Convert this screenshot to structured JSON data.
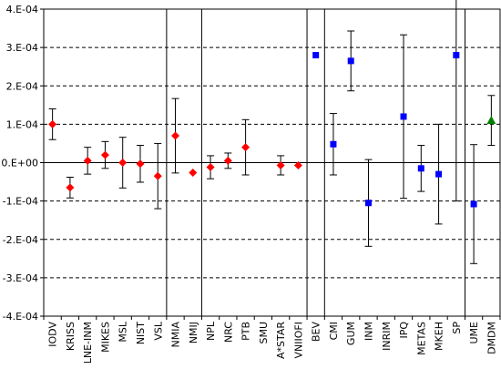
{
  "chart_data": {
    "type": "scatter",
    "title": "",
    "xlabel": "",
    "ylabel": "",
    "ylim": [
      -0.0004,
      0.0004
    ],
    "yticks": [
      0.0004,
      0.0003,
      0.0002,
      0.0001,
      0.0,
      -0.0001,
      -0.0002,
      -0.0003,
      -0.0004
    ],
    "ytick_labels": [
      "4.E-04",
      "3.E-04",
      "2.E-04",
      "1.E-04",
      "0.E+00",
      "-1.E-04",
      "-2.E-04",
      "-3.E-04",
      "-4.E-04"
    ],
    "grid": "horizontal dashed",
    "legend": "none",
    "categories": [
      "IODV",
      "KRISS",
      "LNE-INM",
      "MIKES",
      "MSL",
      "NIST",
      "VSL",
      "NMIA",
      "NMIJ",
      "NPL",
      "NRC",
      "PTB",
      "SMU",
      "A*STAR",
      "VNIIOFI",
      "BEV",
      "CMI",
      "GUM",
      "INM",
      "INRIM",
      "IPQ",
      "METAS",
      "MKEH",
      "SP",
      "UME",
      "DMDM"
    ],
    "group_separators_after": [
      "VSL",
      "NMIJ",
      "VNIIOFI",
      "BEV",
      "SP"
    ],
    "series": [
      {
        "marker": "diamond",
        "color": "#ff0000",
        "points": [
          {
            "x": "IODV",
            "y": 0.0001,
            "err": 4e-05
          },
          {
            "x": "KRISS",
            "y": -6.5e-05,
            "err": 2.7e-05
          },
          {
            "x": "LNE-INM",
            "y": 5e-06,
            "err": 3.5e-05
          },
          {
            "x": "MIKES",
            "y": 2e-05,
            "err": 3.5e-05
          },
          {
            "x": "MSL",
            "y": 0.0,
            "err": 6.6e-05
          },
          {
            "x": "NIST",
            "y": -3e-06,
            "err": 4.8e-05
          },
          {
            "x": "VSL",
            "y": -3.5e-05,
            "err": 8.5e-05
          },
          {
            "x": "NMIA",
            "y": 7e-05,
            "err": 9.7e-05
          },
          {
            "x": "NMIJ",
            "y": -2.6e-05,
            "err": null
          },
          {
            "x": "NPL",
            "y": -1.2e-05,
            "err": 3e-05
          },
          {
            "x": "NRC",
            "y": 5e-06,
            "err": 2e-05
          },
          {
            "x": "PTB",
            "y": 4e-05,
            "err": 7.2e-05
          },
          {
            "x": "A*STAR",
            "y": -7e-06,
            "err": 2.5e-05
          },
          {
            "x": "VNIIOFI",
            "y": -7e-06,
            "err": null
          }
        ]
      },
      {
        "marker": "square",
        "color": "#0000ff",
        "points": [
          {
            "x": "BEV",
            "y": 0.00028,
            "err": null
          },
          {
            "x": "CMI",
            "y": 4.8e-05,
            "err": 8e-05
          },
          {
            "x": "GUM",
            "y": 0.000265,
            "err": 7.8e-05
          },
          {
            "x": "INM",
            "y": -0.000105,
            "err": 0.000113
          },
          {
            "x": "IPQ",
            "y": 0.00012,
            "err": 0.000213
          },
          {
            "x": "METAS",
            "y": -1.5e-05,
            "err": 6e-05
          },
          {
            "x": "MKEH",
            "y": -3e-05,
            "err": 0.00013
          },
          {
            "x": "SP",
            "y": 0.00028,
            "err": 0.00038
          },
          {
            "x": "UME",
            "y": -0.000108,
            "err": 0.000155
          }
        ]
      },
      {
        "marker": "triangle",
        "color": "#008000",
        "points": [
          {
            "x": "DMDM",
            "y": 0.00011,
            "err": 6.5e-05
          }
        ]
      }
    ]
  }
}
